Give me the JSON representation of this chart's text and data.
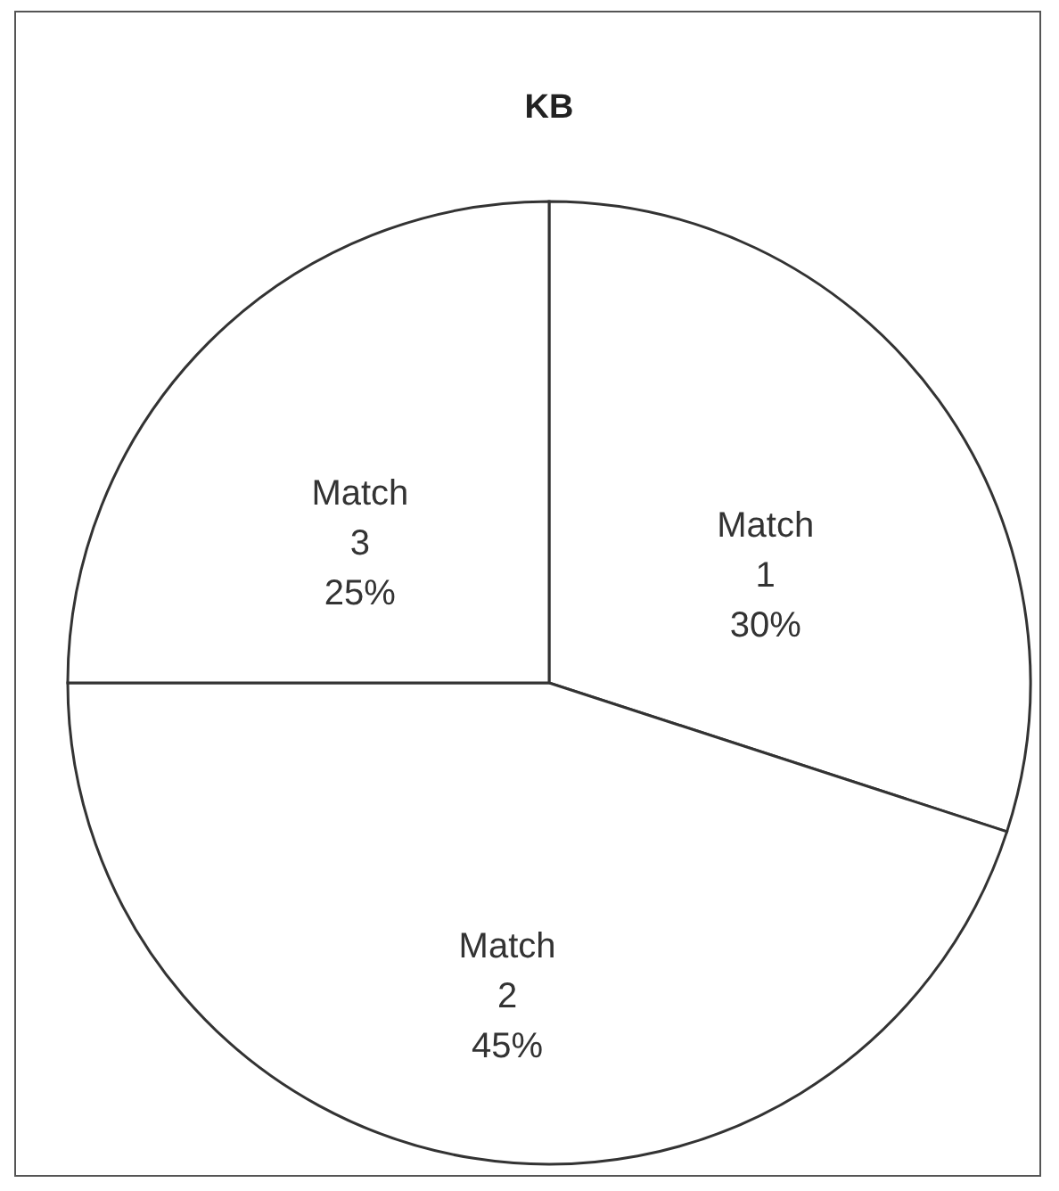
{
  "chart_data": {
    "type": "pie",
    "title": "KB",
    "categories": [
      "Match 1",
      "Match 2",
      "Match 3"
    ],
    "values": [
      30,
      45,
      25
    ],
    "value_labels": [
      "30%",
      "45%",
      "25%"
    ],
    "colors": [
      "#ffffff",
      "#ffffff",
      "#ffffff"
    ],
    "legend": false
  }
}
